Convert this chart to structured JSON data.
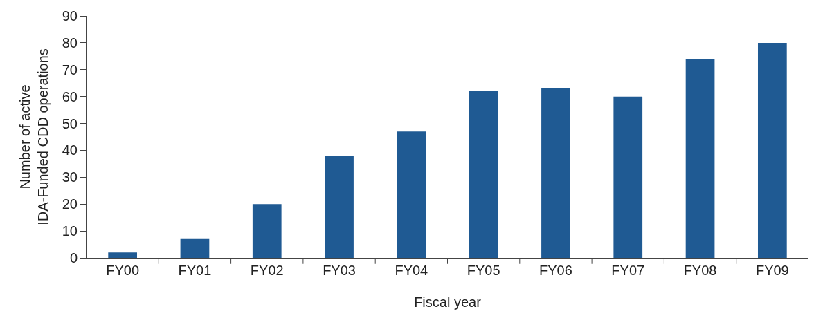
{
  "chart_data": {
    "type": "bar",
    "xlabel": "Fiscal year",
    "ylabel": "Number of active IDA-Funded CDD operations",
    "categories": [
      "FY00",
      "FY01",
      "FY02",
      "FY03",
      "FY04",
      "FY05",
      "FY06",
      "FY07",
      "FY08",
      "FY09"
    ],
    "values": [
      2,
      7,
      20,
      38,
      47,
      62,
      63,
      60,
      74,
      80
    ],
    "color": "#1f5a93",
    "ylim": [
      0,
      90
    ],
    "yticks": [
      0,
      10,
      20,
      30,
      40,
      50,
      60,
      70,
      80,
      90
    ],
    "grid": false
  }
}
